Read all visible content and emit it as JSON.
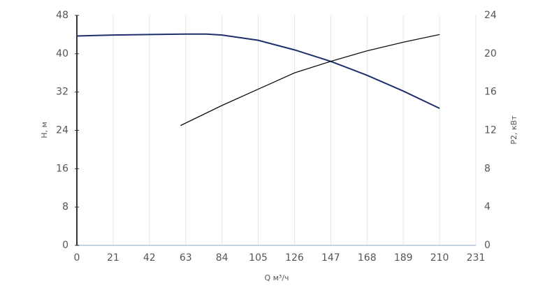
{
  "chart_data": {
    "type": "line",
    "x_label": "Q м³/ч",
    "y_label": "H, м",
    "y2_label": "P2, кВт",
    "xlim": [
      0,
      231
    ],
    "xticks": [
      0,
      21,
      42,
      63,
      84,
      105,
      126,
      147,
      168,
      189,
      210,
      231
    ],
    "ylim": [
      0,
      48
    ],
    "yticks": [
      0,
      8,
      16,
      24,
      32,
      40,
      48
    ],
    "y2lim": [
      0,
      24
    ],
    "y2ticks": [
      0,
      4,
      8,
      12,
      16,
      20,
      24
    ],
    "grid": true,
    "series": [
      {
        "name": "H",
        "color": "#1e2f6b",
        "x": [
          0,
          21,
          42,
          63,
          75,
          84,
          105,
          126,
          147,
          168,
          189,
          210
        ],
        "values": [
          43.7,
          43.9,
          44.0,
          44.1,
          44.1,
          43.9,
          42.8,
          40.8,
          38.4,
          35.5,
          32.2,
          28.6
        ]
      },
      {
        "name": "P2",
        "color": "#111111",
        "axis": "y2",
        "x": [
          60,
          84,
          105,
          126,
          147,
          168,
          189,
          210
        ],
        "values": [
          12.5,
          14.6,
          16.3,
          18.0,
          19.2,
          20.3,
          21.2,
          22.0
        ]
      }
    ]
  }
}
